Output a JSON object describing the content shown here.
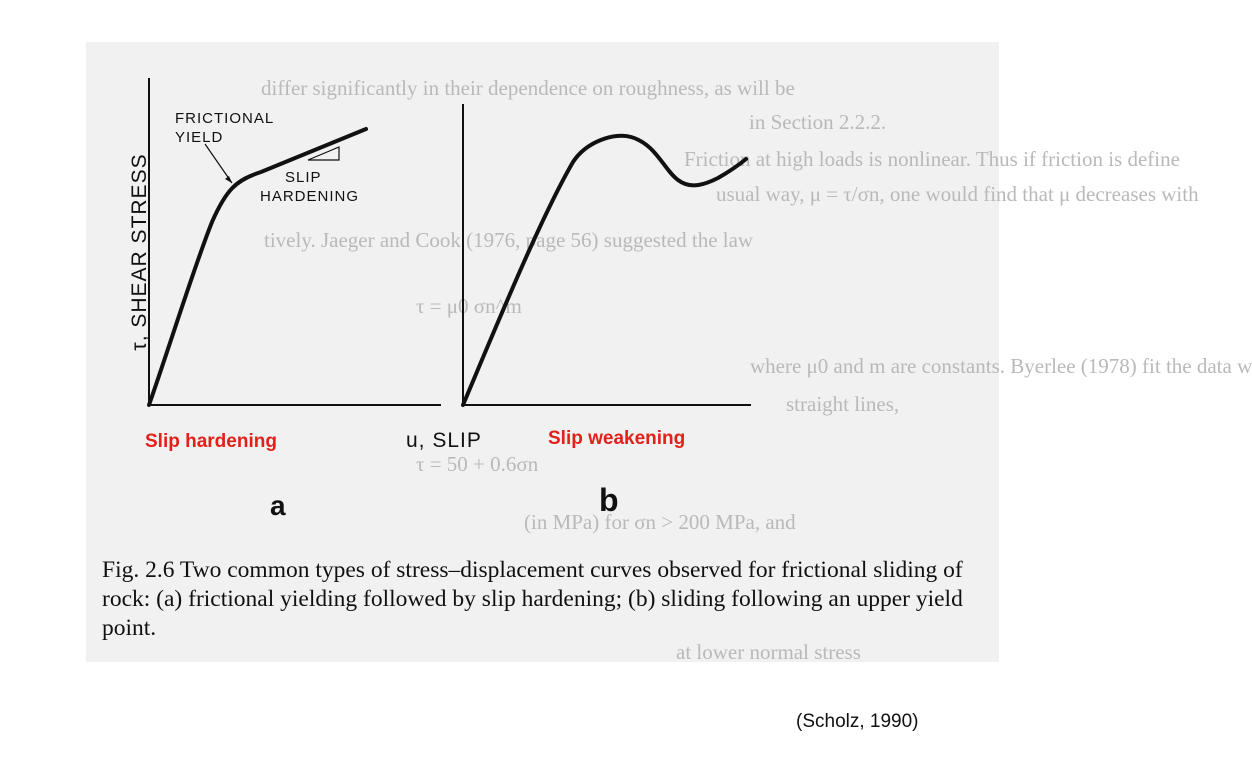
{
  "figure": {
    "panel_a": {
      "y_axis_label": "τ, SHEAR STRESS",
      "annotation_yield_line1": "FRICTIONAL",
      "annotation_yield_line2": "YIELD",
      "annotation_hardening_line1": "SLIP",
      "annotation_hardening_line2": "HARDENING",
      "panel_letter": "a",
      "highlight": "Slip hardening"
    },
    "panel_b": {
      "panel_letter": "b",
      "highlight": "Slip weakening"
    },
    "x_axis_label": "u, SLIP",
    "caption": "Fig. 2.6  Two common types of stress–displacement curves observed for frictional sliding of rock: (a) frictional yielding followed by slip hardening; (b) sliding following an upper yield point.",
    "curve_color": "#111111",
    "highlight_color": "#e3201a"
  },
  "bleed_through_text": [
    "differ significantly in their dependence on roughness, as will be",
    "in Section 2.2.2.",
    "Friction at high loads is nonlinear. Thus if friction is define",
    "usual way, μ = τ/σn, one would find that μ decreases with",
    "tively. Jaeger and Cook (1976, page 56) suggested the law",
    "τ = μ0 σn^m",
    "where μ0 and m are constants. Byerlee (1978) fit the data w",
    "straight lines,",
    "τ = 50 + 0.6σn",
    "(in MPa) for σn > 200 MPa, and",
    "at lower normal stress"
  ],
  "credit": "(Scholz, 1990)"
}
